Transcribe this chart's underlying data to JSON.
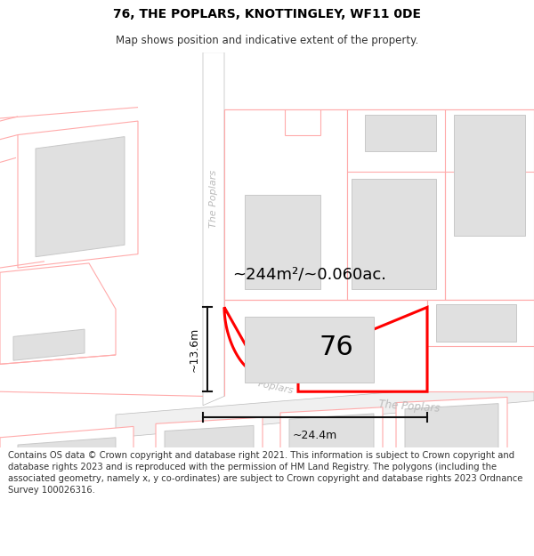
{
  "title": "76, THE POPLARS, KNOTTINGLEY, WF11 0DE",
  "subtitle": "Map shows position and indicative extent of the property.",
  "footer": "Contains OS data © Crown copyright and database right 2021. This information is subject to Crown copyright and database rights 2023 and is reproduced with the permission of HM Land Registry. The polygons (including the associated geometry, namely x, y co-ordinates) are subject to Crown copyright and database rights 2023 Ordnance Survey 100026316.",
  "area_text": "~244m²/~0.060ac.",
  "number_text": "76",
  "dim_horiz": "~24.4m",
  "dim_vert": "~13.6m",
  "bg_color": "#ffffff",
  "map_bg": "#f8f8f8",
  "road_fill": "#e8e8e8",
  "road_line": "#bbbbbb",
  "bld_fill": "#e0e0e0",
  "bld_line": "#c8c8c8",
  "plot_outline_color": "#ffaaaa",
  "plot_line_color": "#ff0000",
  "street_color": "#bbbbbb",
  "dim_color": "#111111",
  "title_fs": 10,
  "subtitle_fs": 8.5,
  "footer_fs": 7.2,
  "area_fs": 13,
  "num_fs": 22,
  "dim_fs": 9
}
